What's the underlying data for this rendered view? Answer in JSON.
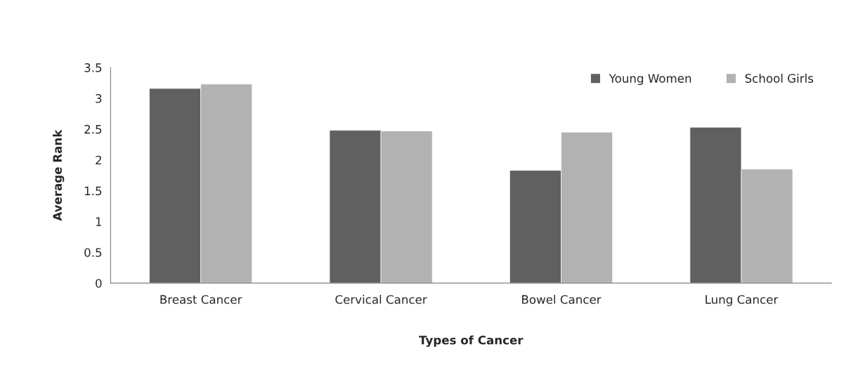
{
  "chart_data": {
    "type": "bar",
    "xlabel": "Types of Cancer",
    "ylabel": "Average Rank",
    "categories": [
      "Breast Cancer",
      "Cervical Cancer",
      "Bowel Cancer",
      "Lung Cancer"
    ],
    "series": [
      {
        "name": "Young Women",
        "color": "#606060",
        "values": [
          3.16,
          2.48,
          1.83,
          2.53
        ]
      },
      {
        "name": "School Girls",
        "color": "#b2b2b2",
        "values": [
          3.23,
          2.47,
          2.45,
          1.85
        ]
      }
    ],
    "ylim": [
      0,
      3.5
    ],
    "yticks": [
      0,
      0.5,
      1,
      1.5,
      2,
      2.5,
      3,
      3.5
    ],
    "grid": false,
    "legend": "top right"
  }
}
